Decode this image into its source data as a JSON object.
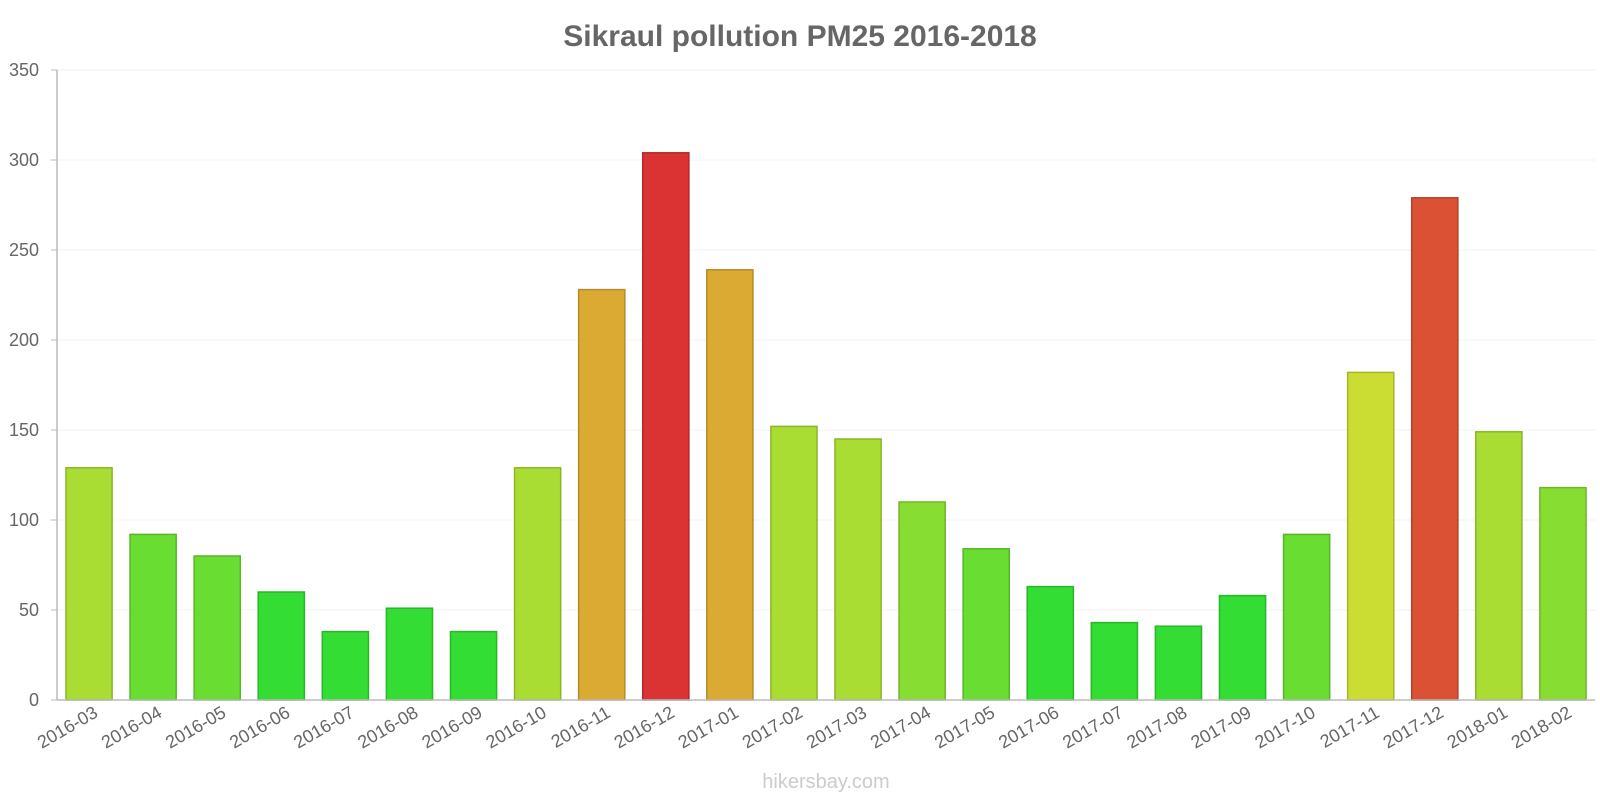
{
  "chart_data": {
    "type": "bar",
    "title": "Sikraul pollution PM25 2016-2018",
    "xlabel": "",
    "ylabel": "",
    "ylim": [
      0,
      350
    ],
    "yticks": [
      0,
      50,
      100,
      150,
      200,
      250,
      300,
      350
    ],
    "ytick_labels": [
      "0",
      "50",
      "100",
      "150",
      "200",
      "250",
      "300",
      "350"
    ],
    "grid": true,
    "legend": "none",
    "categories": [
      "2016-03",
      "2016-04",
      "2016-05",
      "2016-06",
      "2016-07",
      "2016-08",
      "2016-09",
      "2016-10",
      "2016-11",
      "2016-12",
      "2017-01",
      "2017-02",
      "2017-03",
      "2017-04",
      "2017-05",
      "2017-06",
      "2017-07",
      "2017-08",
      "2017-09",
      "2017-10",
      "2017-11",
      "2017-12",
      "2018-01",
      "2018-02"
    ],
    "values": [
      129,
      92,
      80,
      60,
      38,
      51,
      38,
      129,
      228,
      304,
      239,
      152,
      145,
      110,
      84,
      63,
      43,
      41,
      58,
      92,
      182,
      279,
      149,
      118
    ],
    "colors": [
      "#aadd33",
      "#6add33",
      "#6add33",
      "#33dd33",
      "#33dd33",
      "#33dd33",
      "#33dd33",
      "#aadd33",
      "#dbaa33",
      "#db3333",
      "#dbaa33",
      "#aadd33",
      "#aadd33",
      "#88dd33",
      "#6add33",
      "#33dd33",
      "#33dd33",
      "#33dd33",
      "#33dd33",
      "#6add33",
      "#cbdd33",
      "#db5133",
      "#aadd33",
      "#88dd33"
    ]
  },
  "watermark": "hikersbay.com"
}
